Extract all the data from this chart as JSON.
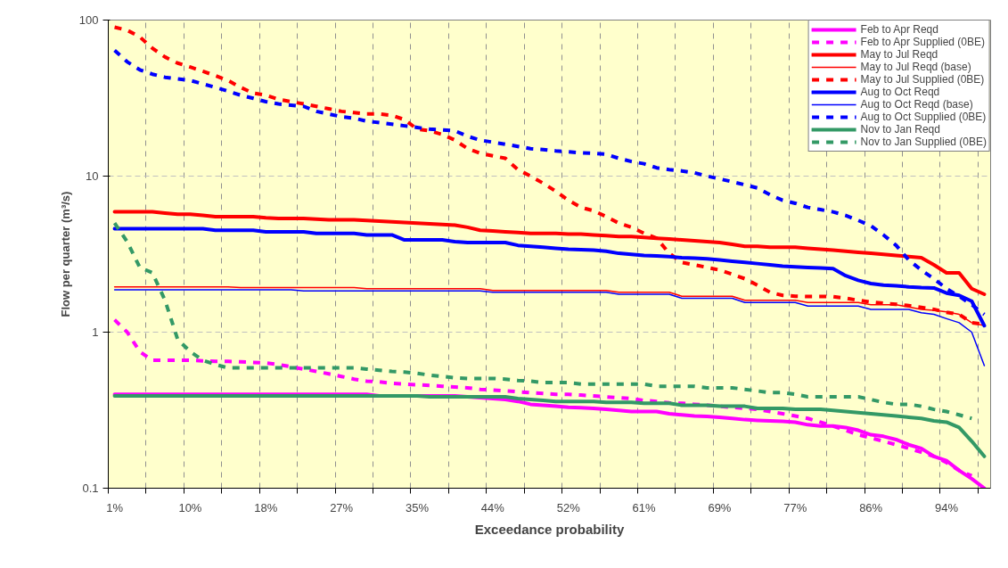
{
  "chart_data": {
    "type": "line",
    "xlabel": "Exceedance probability",
    "ylabel": "Flow per quarter (m³/s)",
    "log": "y",
    "ylim": [
      0.1,
      100
    ],
    "yticks": [
      0.1,
      1,
      10,
      100
    ],
    "grid": true,
    "legend": "top right",
    "categories": [
      "1%",
      null,
      null,
      null,
      null,
      null,
      "10%",
      null,
      null,
      null,
      null,
      null,
      "18%",
      null,
      null,
      null,
      null,
      null,
      "27%",
      null,
      null,
      null,
      null,
      null,
      "35%",
      null,
      null,
      null,
      null,
      null,
      "44%",
      null,
      null,
      null,
      null,
      null,
      "52%",
      null,
      null,
      null,
      null,
      null,
      "61%",
      null,
      null,
      null,
      null,
      null,
      "69%",
      null,
      null,
      null,
      null,
      null,
      "77%",
      null,
      null,
      null,
      null,
      null,
      "86%",
      null,
      null,
      null,
      null,
      null,
      "94%",
      null,
      null,
      null
    ],
    "series": [
      {
        "name": "Feb to Apr Reqd",
        "color": "#ff00ff",
        "line_style": "solid",
        "values": [
          0.4,
          0.4,
          0.4,
          0.4,
          0.4,
          0.4,
          0.4,
          0.4,
          0.4,
          0.4,
          0.4,
          0.4,
          0.4,
          0.4,
          0.4,
          0.4,
          0.4,
          0.4,
          0.4,
          0.4,
          0.4,
          0.39,
          0.39,
          0.39,
          0.39,
          0.39,
          0.39,
          0.39,
          0.385,
          0.38,
          0.375,
          0.37,
          0.36,
          0.345,
          0.34,
          0.335,
          0.33,
          0.328,
          0.325,
          0.32,
          0.315,
          0.31,
          0.31,
          0.31,
          0.3,
          0.295,
          0.29,
          0.288,
          0.285,
          0.28,
          0.275,
          0.272,
          0.27,
          0.268,
          0.265,
          0.255,
          0.25,
          0.25,
          0.245,
          0.235,
          0.22,
          0.215,
          0.205,
          0.19,
          0.18,
          0.16,
          0.15,
          0.13,
          0.115,
          0.1
        ]
      },
      {
        "name": "Feb to Apr Supplied (0BE)",
        "color": "#ff00ff",
        "line_style": "dashed",
        "values": [
          1.2,
          1.0,
          0.75,
          0.66,
          0.66,
          0.66,
          0.66,
          0.655,
          0.65,
          0.65,
          0.645,
          0.64,
          0.635,
          0.62,
          0.6,
          0.58,
          0.56,
          0.54,
          0.52,
          0.5,
          0.485,
          0.48,
          0.47,
          0.465,
          0.46,
          0.455,
          0.45,
          0.445,
          0.44,
          0.43,
          0.425,
          0.42,
          0.415,
          0.41,
          0.405,
          0.4,
          0.4,
          0.395,
          0.39,
          0.385,
          0.38,
          0.375,
          0.365,
          0.36,
          0.352,
          0.35,
          0.345,
          0.34,
          0.335,
          0.33,
          0.325,
          0.32,
          0.31,
          0.3,
          0.29,
          0.28,
          0.265,
          0.25,
          0.235,
          0.22,
          0.21,
          0.2,
          0.19,
          0.18,
          0.17,
          0.16,
          0.146,
          0.13,
          0.12,
          null
        ]
      },
      {
        "name": "May to Jul Reqd",
        "color": "#ff0000",
        "line_style": "solid",
        "values": [
          5.9,
          5.9,
          5.9,
          5.9,
          5.8,
          5.7,
          5.7,
          5.6,
          5.5,
          5.5,
          5.5,
          5.5,
          5.4,
          5.35,
          5.35,
          5.35,
          5.3,
          5.25,
          5.25,
          5.25,
          5.2,
          5.15,
          5.1,
          5.05,
          5.0,
          4.95,
          4.9,
          4.85,
          4.7,
          4.5,
          4.45,
          4.4,
          4.35,
          4.3,
          4.3,
          4.3,
          4.25,
          4.25,
          4.2,
          4.15,
          4.1,
          4.1,
          4.05,
          4.0,
          3.95,
          3.9,
          3.85,
          3.8,
          3.75,
          3.65,
          3.55,
          3.55,
          3.5,
          3.5,
          3.5,
          3.45,
          3.4,
          3.35,
          3.3,
          3.25,
          3.2,
          3.15,
          3.1,
          3.05,
          3.0,
          2.7,
          2.4,
          2.4,
          1.9,
          1.75
        ]
      },
      {
        "name": "May to Jul Reqd (base)",
        "color": "#ff0000",
        "line_style": "solid",
        "values": [
          1.95,
          1.95,
          1.95,
          1.95,
          1.95,
          1.95,
          1.95,
          1.95,
          1.95,
          1.95,
          1.93,
          1.93,
          1.93,
          1.93,
          1.93,
          1.93,
          1.93,
          1.93,
          1.93,
          1.93,
          1.9,
          1.9,
          1.9,
          1.9,
          1.9,
          1.9,
          1.9,
          1.9,
          1.9,
          1.9,
          1.85,
          1.85,
          1.85,
          1.85,
          1.85,
          1.85,
          1.85,
          1.85,
          1.85,
          1.85,
          1.8,
          1.8,
          1.8,
          1.8,
          1.8,
          1.7,
          1.7,
          1.7,
          1.7,
          1.7,
          1.6,
          1.6,
          1.6,
          1.6,
          1.6,
          1.55,
          1.55,
          1.55,
          1.55,
          1.55,
          1.5,
          1.5,
          1.5,
          1.45,
          1.4,
          1.38,
          1.35,
          1.3,
          1.15,
          1.1
        ]
      },
      {
        "name": "May to Jul Supplied (0BE)",
        "color": "#ff0000",
        "line_style": "dashed",
        "values": [
          90,
          86,
          78,
          66,
          58,
          53,
          50,
          47,
          44,
          41,
          37,
          34,
          33,
          31,
          30,
          29,
          28,
          27,
          26,
          25.5,
          25,
          25,
          24.5,
          23,
          20,
          19.5,
          18.5,
          17,
          15,
          14,
          13.5,
          13,
          11,
          10,
          9,
          8,
          7,
          6.3,
          6,
          5.5,
          5,
          4.7,
          4.3,
          4,
          3.2,
          2.8,
          2.7,
          2.6,
          2.5,
          2.35,
          2.2,
          2.0,
          1.8,
          1.72,
          1.7,
          1.69,
          1.69,
          1.69,
          1.65,
          1.6,
          1.56,
          1.53,
          1.51,
          1.48,
          1.44,
          1.4,
          1.34,
          1.3,
          1.15,
          1.12
        ]
      },
      {
        "name": "Aug to Oct Reqd",
        "color": "#0000ff",
        "line_style": "solid",
        "values": [
          4.6,
          4.6,
          4.6,
          4.6,
          4.6,
          4.6,
          4.6,
          4.6,
          4.5,
          4.5,
          4.5,
          4.5,
          4.4,
          4.4,
          4.4,
          4.4,
          4.3,
          4.3,
          4.3,
          4.3,
          4.2,
          4.2,
          4.2,
          3.9,
          3.9,
          3.9,
          3.9,
          3.8,
          3.75,
          3.75,
          3.75,
          3.75,
          3.6,
          3.55,
          3.5,
          3.45,
          3.4,
          3.38,
          3.35,
          3.3,
          3.2,
          3.15,
          3.1,
          3.08,
          3.05,
          3.0,
          2.98,
          2.95,
          2.9,
          2.85,
          2.8,
          2.75,
          2.7,
          2.65,
          2.62,
          2.6,
          2.58,
          2.55,
          2.3,
          2.15,
          2.05,
          2.0,
          1.98,
          1.95,
          1.93,
          1.92,
          1.78,
          1.72,
          1.58,
          1.1
        ]
      },
      {
        "name": "Aug to Oct Reqd (base)",
        "color": "#0000ff",
        "line_style": "solid",
        "values": [
          1.87,
          1.87,
          1.87,
          1.87,
          1.87,
          1.87,
          1.87,
          1.87,
          1.87,
          1.87,
          1.87,
          1.87,
          1.87,
          1.87,
          1.87,
          1.84,
          1.84,
          1.84,
          1.84,
          1.84,
          1.84,
          1.84,
          1.84,
          1.84,
          1.84,
          1.84,
          1.84,
          1.84,
          1.84,
          1.84,
          1.8,
          1.8,
          1.8,
          1.8,
          1.8,
          1.8,
          1.8,
          1.8,
          1.8,
          1.8,
          1.75,
          1.75,
          1.75,
          1.75,
          1.75,
          1.65,
          1.65,
          1.65,
          1.65,
          1.65,
          1.55,
          1.55,
          1.55,
          1.55,
          1.55,
          1.47,
          1.47,
          1.47,
          1.47,
          1.47,
          1.4,
          1.4,
          1.4,
          1.4,
          1.33,
          1.3,
          1.22,
          1.15,
          1.0,
          0.61
        ]
      },
      {
        "name": "Aug to Oct Supplied (0BE)",
        "color": "#0000ff",
        "line_style": "dashed",
        "values": [
          64,
          54,
          48,
          45,
          43,
          42,
          41,
          39,
          37,
          35,
          33,
          31.5,
          30,
          29,
          28.5,
          28,
          26,
          25,
          24,
          23.5,
          22.5,
          22,
          21.5,
          21,
          20.5,
          20,
          19.8,
          19.5,
          18,
          17,
          16.5,
          16,
          15.5,
          15,
          14.8,
          14.5,
          14.3,
          14.1,
          14,
          13.8,
          13,
          12.4,
          12,
          11.3,
          11,
          10.8,
          10.5,
          10,
          9.6,
          9.2,
          8.8,
          8.4,
          7.6,
          7.0,
          6.7,
          6.3,
          6.1,
          5.9,
          5.6,
          5.2,
          4.8,
          4.2,
          3.6,
          2.9,
          2.5,
          2.2,
          1.9,
          1.7,
          1.5,
          1.3
        ]
      },
      {
        "name": "Nov to Jan Reqd",
        "color": "#339966",
        "line_style": "solid",
        "values": [
          0.39,
          0.39,
          0.39,
          0.39,
          0.39,
          0.39,
          0.39,
          0.39,
          0.39,
          0.39,
          0.39,
          0.39,
          0.39,
          0.39,
          0.39,
          0.39,
          0.39,
          0.39,
          0.39,
          0.39,
          0.39,
          0.39,
          0.39,
          0.39,
          0.39,
          0.385,
          0.385,
          0.385,
          0.385,
          0.385,
          0.385,
          0.385,
          0.375,
          0.37,
          0.365,
          0.36,
          0.36,
          0.36,
          0.36,
          0.355,
          0.355,
          0.355,
          0.35,
          0.35,
          0.35,
          0.34,
          0.34,
          0.34,
          0.335,
          0.335,
          0.335,
          0.325,
          0.325,
          0.325,
          0.32,
          0.32,
          0.32,
          0.315,
          0.31,
          0.305,
          0.3,
          0.295,
          0.29,
          0.285,
          0.28,
          0.27,
          0.265,
          0.245,
          0.2,
          0.16
        ]
      },
      {
        "name": "Nov to Jan Supplied (0BE)",
        "color": "#339966",
        "line_style": "dashed",
        "values": [
          5.0,
          3.8,
          2.6,
          2.4,
          1.6,
          0.9,
          0.75,
          0.66,
          0.62,
          0.59,
          0.59,
          0.59,
          0.59,
          0.59,
          0.59,
          0.59,
          0.59,
          0.59,
          0.59,
          0.59,
          0.58,
          0.57,
          0.56,
          0.555,
          0.545,
          0.53,
          0.52,
          0.51,
          0.505,
          0.505,
          0.505,
          0.5,
          0.49,
          0.485,
          0.475,
          0.475,
          0.475,
          0.465,
          0.465,
          0.465,
          0.465,
          0.465,
          0.465,
          0.45,
          0.45,
          0.45,
          0.45,
          0.44,
          0.44,
          0.44,
          0.43,
          0.42,
          0.41,
          0.41,
          0.4,
          0.385,
          0.385,
          0.385,
          0.385,
          0.385,
          0.37,
          0.355,
          0.345,
          0.345,
          0.335,
          0.32,
          0.31,
          0.295,
          0.28,
          null
        ]
      }
    ]
  }
}
